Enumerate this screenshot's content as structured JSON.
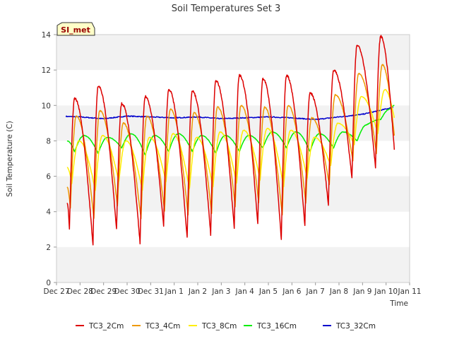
{
  "chart_data": {
    "type": "line",
    "title": "Soil Temperatures Set 3",
    "xlabel": "Time",
    "ylabel": "Soil Temperature (C)",
    "badge": "SI_met",
    "x_ticks": [
      "Dec 27",
      "Dec 28",
      "Dec 29",
      "Dec 30",
      "Dec 31",
      "Jan 1",
      "Jan 2",
      "Jan 3",
      "Jan 4",
      "Jan 5",
      "Jan 6",
      "Jan 7",
      "Jan 8",
      "Jan 9",
      "Jan 10",
      "Jan 11"
    ],
    "y_ticks": [
      0,
      2,
      4,
      6,
      8,
      10,
      12,
      14
    ],
    "ylim": [
      0,
      14
    ],
    "x_range_days": [
      0,
      15
    ],
    "grid": "horizontal bands",
    "legend_position": "bottom",
    "colors": {
      "TC3_2Cm": "#dd0000",
      "TC3_4Cm": "#ee9900",
      "TC3_8Cm": "#ffee00",
      "TC3_16Cm": "#00ee00",
      "TC3_32Cm": "#0000cc",
      "band": "#f2f2f2",
      "badge_bg": "#ffffc8"
    },
    "series": [
      {
        "name": "TC3_2Cm",
        "daily_max": [
          10.4,
          11.1,
          10.1,
          10.5,
          10.9,
          10.8,
          11.4,
          11.7,
          11.5,
          11.7,
          10.7,
          12.0,
          13.4,
          13.9
        ],
        "daily_min": [
          3.0,
          2.1,
          3.0,
          2.2,
          3.2,
          2.5,
          2.7,
          3.1,
          3.3,
          2.4,
          3.2,
          4.4,
          5.9,
          6.5
        ],
        "start": 4.5,
        "end": 7.5
      },
      {
        "name": "TC3_4Cm",
        "daily_max": [
          9.4,
          9.7,
          9.0,
          9.4,
          9.8,
          9.6,
          9.9,
          10.0,
          9.9,
          10.0,
          9.3,
          10.6,
          11.8,
          12.3
        ],
        "daily_min": [
          4.2,
          3.6,
          4.3,
          3.6,
          4.0,
          3.8,
          3.9,
          4.3,
          4.5,
          3.8,
          4.5,
          5.5,
          6.9,
          7.3
        ],
        "start": 5.4,
        "end": 8.3
      },
      {
        "name": "TC3_8Cm",
        "daily_max": [
          8.0,
          8.3,
          8.0,
          8.2,
          8.4,
          8.2,
          8.5,
          8.6,
          8.7,
          8.6,
          8.2,
          9.0,
          10.5,
          10.9
        ],
        "daily_min": [
          5.6,
          5.2,
          5.7,
          5.2,
          5.7,
          5.3,
          5.4,
          5.6,
          5.8,
          5.4,
          5.9,
          6.6,
          7.8,
          8.4
        ],
        "start": 6.5,
        "end": 9.3
      },
      {
        "name": "TC3_16Cm",
        "daily_max": [
          8.3,
          8.2,
          8.4,
          8.3,
          8.4,
          8.3,
          8.3,
          8.3,
          8.5,
          8.5,
          8.4,
          8.5,
          8.9,
          9.8
        ],
        "daily_min": [
          7.4,
          7.3,
          7.6,
          7.2,
          7.4,
          7.4,
          7.3,
          7.4,
          7.6,
          7.6,
          7.4,
          7.6,
          8.0,
          9.2
        ],
        "start": 8.0,
        "end": 10.0
      },
      {
        "name": "TC3_32Cm",
        "values_daily": [
          9.4,
          9.35,
          9.25,
          9.4,
          9.35,
          9.3,
          9.35,
          9.25,
          9.3,
          9.35,
          9.3,
          9.2,
          9.35,
          9.5,
          9.8,
          10.1
        ],
        "x_start": 0.4,
        "x_end": 14.3
      }
    ]
  }
}
